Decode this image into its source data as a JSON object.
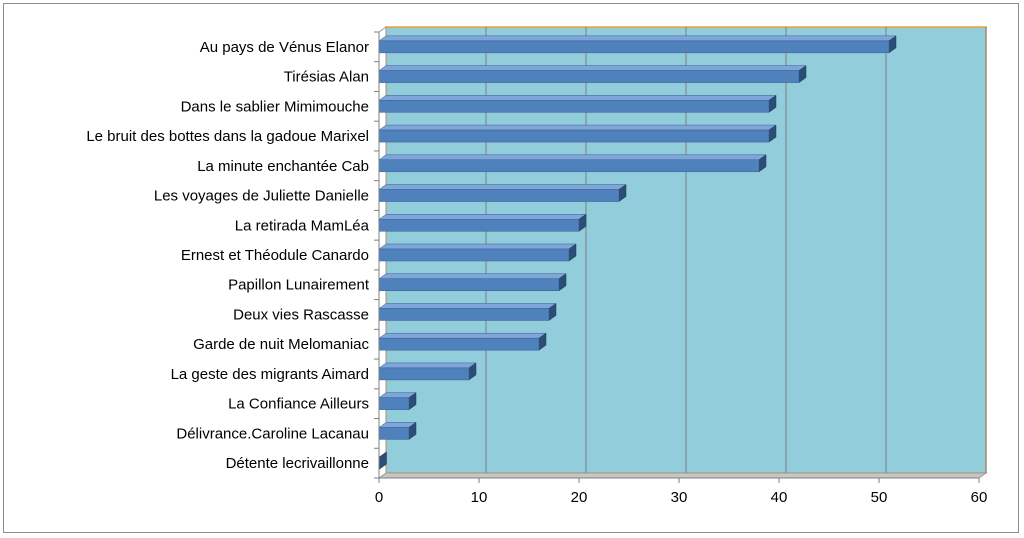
{
  "chart_data": {
    "type": "bar",
    "orientation": "horizontal",
    "title": "",
    "xlabel": "",
    "ylabel": "",
    "xlim": [
      0,
      60
    ],
    "ticks": [
      "0",
      "10",
      "20",
      "30",
      "40",
      "50",
      "60"
    ],
    "tick_values": [
      0,
      10,
      20,
      30,
      40,
      50,
      60
    ],
    "grid": true,
    "legend": "none",
    "categories": [
      "Au pays de Vénus Elanor",
      "Tirésias Alan",
      "Dans le sablier Mimimouche",
      "Le bruit des bottes dans la gadoue Marixel",
      "La minute enchantée Cab",
      "Les voyages de Juliette Danielle",
      "La retirada  MamLéa",
      "Ernest et Théodule Canardo",
      "Papillon Lunairement",
      "Deux vies Rascasse",
      "Garde de nuit Melomaniac",
      "La geste des migrants  Aimard",
      "La Confiance   Ailleurs",
      "Délivrance.Caroline Lacanau",
      "Détente lecrivaillonne"
    ],
    "values": [
      51,
      42,
      39,
      39,
      38,
      24,
      20,
      19,
      18,
      17,
      16,
      9,
      3,
      3,
      0
    ],
    "colors": {
      "plot_background": "#92cddc",
      "bar_front": "#4f81bd",
      "bar_top": "#7ea6da",
      "bar_side": "#2c4d75",
      "plot_border": "#f0a030",
      "gridline": "#7f7f7f",
      "axis": "#7f7f7f"
    }
  }
}
